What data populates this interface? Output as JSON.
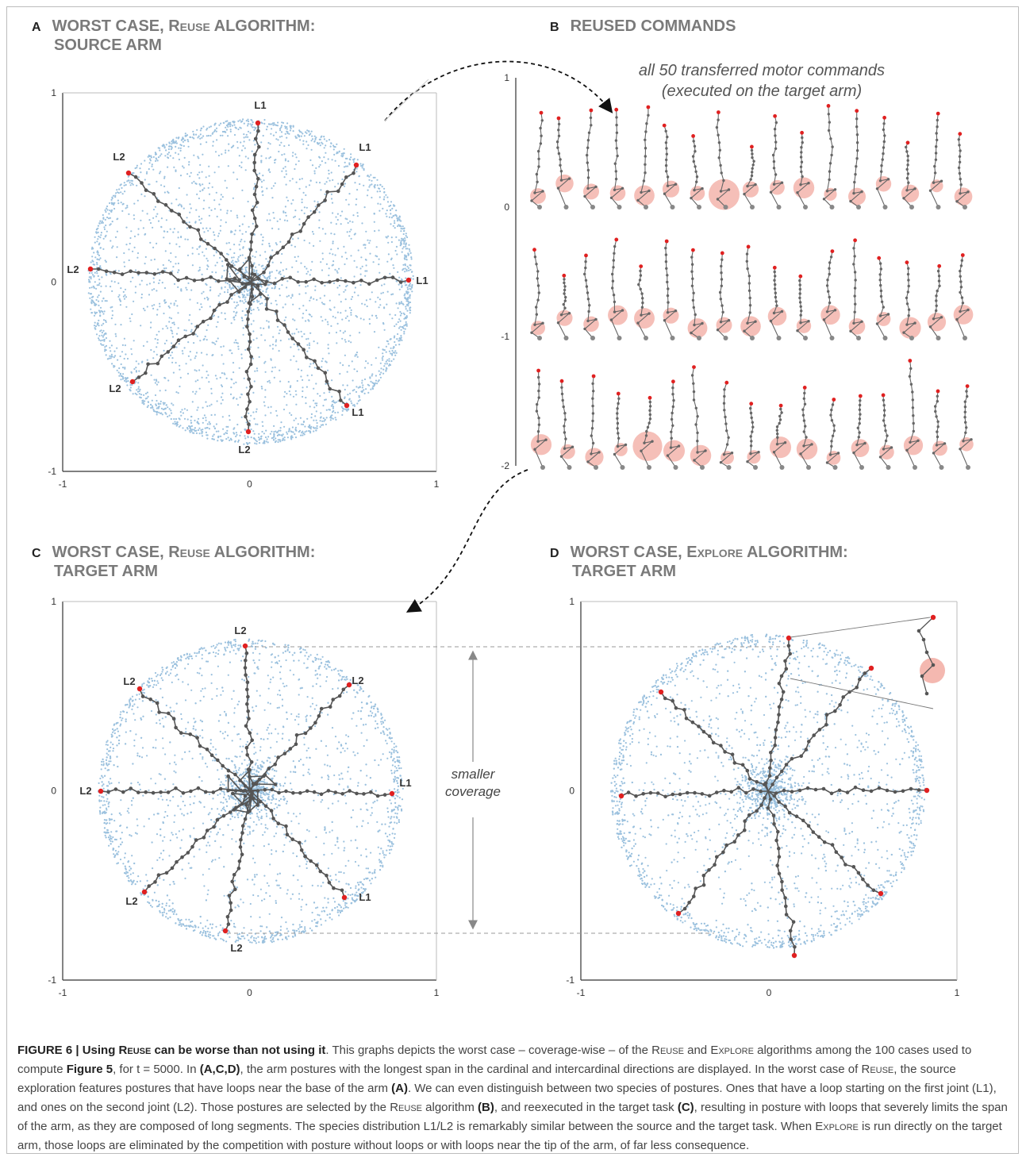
{
  "panels": {
    "A": {
      "letter": "A",
      "line1_pre": "WORST CASE, ",
      "line1_sc": "Reuse",
      "line1_post": " ALGORITHM:",
      "line2": "SOURCE ARM"
    },
    "B": {
      "letter": "B",
      "line1": "REUSED COMMANDS",
      "subtitle1": "all 50 transferred motor commands",
      "subtitle2": "(executed on the target arm)"
    },
    "C": {
      "letter": "C",
      "line1_pre": "WORST CASE, ",
      "line1_sc": "Reuse",
      "line1_post": " ALGORITHM:",
      "line2": "TARGET ARM"
    },
    "D": {
      "letter": "D",
      "line1_pre": "WORST CASE, ",
      "line1_sc": "Explore",
      "line1_post": " ALGORITHM:",
      "line2": "TARGET ARM"
    }
  },
  "plots": {
    "A": {
      "tick_x": [
        "-1",
        "0",
        "1"
      ],
      "tick_y": [
        "1",
        "0",
        "-1"
      ],
      "labels": [
        "L1",
        "L1",
        "L1",
        "L1",
        "L2",
        "L2",
        "L2",
        "L2"
      ]
    },
    "B": {
      "tick_y": [
        "1",
        "0",
        "-1",
        "-2"
      ]
    },
    "C": {
      "tick_x": [
        "-1",
        "0",
        "1"
      ],
      "tick_y": [
        "1",
        "0",
        "-1"
      ],
      "labels": [
        "L2",
        "L2",
        "L2",
        "L1",
        "L1",
        "L2",
        "L2",
        "L2"
      ]
    },
    "D": {
      "tick_x": [
        "-1",
        "0",
        "1"
      ],
      "tick_y": [
        "1",
        "0",
        "-1"
      ]
    }
  },
  "annotation": {
    "line1": "smaller",
    "line2": "coverage"
  },
  "colors": {
    "scatter": "#4a8fc4",
    "arm": "#555555",
    "tip": "#e02020",
    "loop": "#f4b8b0",
    "title_gray": "#7a7a7a"
  },
  "caption": {
    "fig": "FIGURE 6 | Using ",
    "fig_sc": "Reuse",
    "fig_rest": " can be worse than not using it",
    "p1": ". This graphs depicts the worst case – coverage-wise – of the ",
    "sc1": "Reuse",
    "p2": " and ",
    "sc2": "Explore",
    "p3": " algorithms among the 100 cases used to compute ",
    "b1": "Figure 5",
    "p4": ", for t = 5000. In ",
    "b2": "(A,C,D)",
    "p5": ", the arm postures with the longest span in the cardinal and intercardinal directions are displayed. In the worst case of ",
    "sc3": "Reuse",
    "p6": ", the source exploration features postures that have loops near the base of the arm ",
    "b3": "(A)",
    "p7": ". We can even distinguish between two species of postures. Ones that have a loop starting on the first joint (L1), and ones on the second joint (L2). Those postures are selected by the ",
    "sc4": "Reuse",
    "p8": " algorithm ",
    "b4": "(B)",
    "p9": ", and reexecuted in the target task ",
    "b5": "(C)",
    "p10": ", resulting in posture with loops that severely limits the span of the arm, as they are composed of long segments. The species distribution L1/L2 is remarkably similar between the source and the target task. When ",
    "sc5": "Explore",
    "p11": " is run directly on the target arm, those loops are eliminated by the competition with posture without loops or with loops near the tip of the arm, of far less consequence."
  }
}
